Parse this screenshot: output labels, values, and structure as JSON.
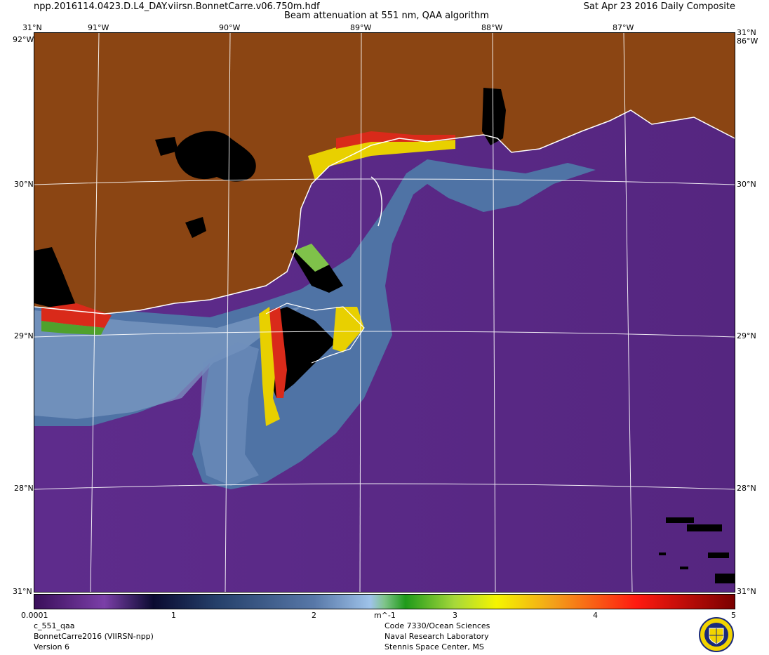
{
  "header": {
    "filename": "npp.2016114.0423.D.L4_DAY.viirsn.BonnetCarre.v06.750m.hdf",
    "title": "Beam attenuation at 551 nm, QAA algorithm",
    "date": "Sat Apr 23 2016 Daily Composite"
  },
  "map": {
    "lon_labels": [
      "91°W",
      "90°W",
      "89°W",
      "88°W",
      "87°W"
    ],
    "lat_labels": [
      "30°N",
      "29°N",
      "28°N"
    ],
    "corner_top": "31°N",
    "corner_bottom": "31°N",
    "corner_left_mark": "92°W",
    "corner_right_mark": "86°W",
    "colors": {
      "land": "#8b4513",
      "ocean_deep": "#5b2a86",
      "ocean_mid": "#4a6fa0",
      "turbid": "#e8e000",
      "no_data": "#000000",
      "coast": "#ffffff",
      "grid": "#ffffff"
    }
  },
  "colorbar": {
    "ticks": [
      "0.0001",
      "1",
      "2",
      "m^-1",
      "3",
      "4",
      "5"
    ]
  },
  "footer": {
    "left": [
      "c_551_qaa",
      "BonnetCarre2016 (VIIRSN-npp)",
      "Version 6"
    ],
    "right": [
      "Code 7330/Ocean Sciences",
      "Naval Research Laboratory",
      "Stennis Space Center, MS"
    ]
  },
  "seal": {
    "icon": "nrl-seal-icon"
  }
}
